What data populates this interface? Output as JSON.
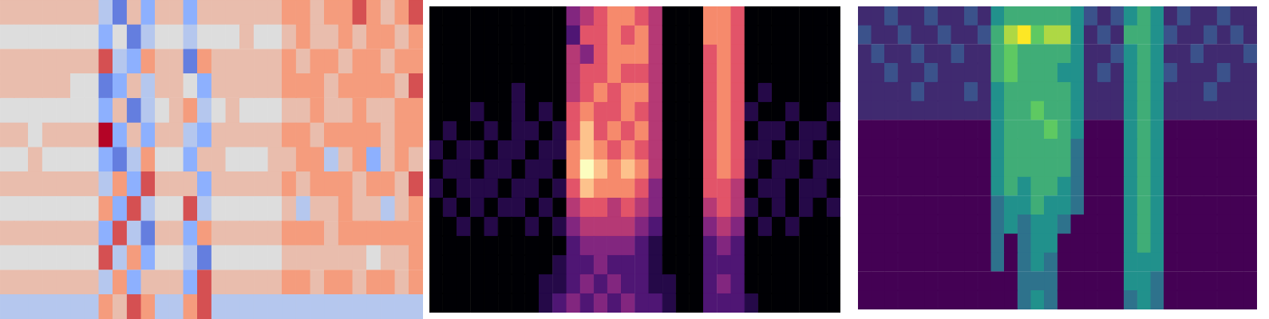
{
  "chart_data": [
    {
      "type": "heatmap",
      "color": "coolwarm",
      "zlim": [
        0,
        8
      ],
      "tick_labels": false,
      "cells": [
        [
          5,
          5,
          5,
          5,
          5,
          5,
          5,
          3,
          1,
          5,
          2,
          5,
          5,
          2,
          5,
          5,
          5,
          5,
          5,
          5,
          6,
          6,
          5,
          6,
          6,
          7,
          6,
          5,
          6,
          7
        ],
        [
          4,
          4,
          4,
          4,
          4,
          4,
          4,
          2,
          4,
          1,
          3,
          4,
          4,
          3,
          4,
          4,
          4,
          5,
          4,
          4,
          5,
          6,
          5,
          5,
          6,
          5,
          6,
          6,
          5,
          6
        ],
        [
          5,
          5,
          5,
          5,
          5,
          5,
          5,
          7,
          3,
          2,
          6,
          5,
          5,
          1,
          6,
          5,
          5,
          5,
          5,
          5,
          6,
          5,
          6,
          6,
          5,
          6,
          6,
          5,
          6,
          6
        ],
        [
          5,
          5,
          5,
          5,
          5,
          4,
          4,
          1,
          2,
          5,
          3,
          5,
          5,
          4,
          2,
          5,
          5,
          5,
          5,
          5,
          6,
          6,
          6,
          5,
          6,
          6,
          6,
          6,
          5,
          7
        ],
        [
          4,
          4,
          4,
          4,
          4,
          4,
          4,
          2,
          5,
          1,
          3,
          4,
          5,
          6,
          3,
          4,
          5,
          4,
          4,
          4,
          5,
          5,
          6,
          5,
          5,
          6,
          5,
          5,
          6,
          6
        ],
        [
          5,
          5,
          4,
          5,
          5,
          5,
          5,
          8,
          2,
          5,
          2,
          5,
          5,
          3,
          2,
          5,
          5,
          5,
          5,
          5,
          6,
          6,
          5,
          6,
          6,
          6,
          6,
          5,
          6,
          6
        ],
        [
          4,
          4,
          5,
          4,
          4,
          4,
          4,
          2,
          1,
          3,
          6,
          4,
          4,
          2,
          5,
          5,
          4,
          4,
          4,
          5,
          5,
          6,
          6,
          3,
          5,
          6,
          2,
          5,
          6,
          5
        ],
        [
          5,
          5,
          5,
          5,
          5,
          5,
          5,
          3,
          6,
          2,
          7,
          5,
          5,
          5,
          2,
          5,
          5,
          5,
          5,
          5,
          6,
          5,
          6,
          6,
          6,
          5,
          6,
          6,
          5,
          7
        ],
        [
          4,
          4,
          4,
          4,
          4,
          4,
          4,
          6,
          2,
          7,
          3,
          4,
          4,
          7,
          3,
          4,
          4,
          4,
          4,
          4,
          5,
          3,
          5,
          5,
          6,
          5,
          5,
          3,
          5,
          6
        ],
        [
          5,
          5,
          5,
          5,
          5,
          5,
          5,
          2,
          7,
          3,
          1,
          5,
          5,
          2,
          6,
          5,
          5,
          5,
          5,
          5,
          6,
          6,
          6,
          5,
          6,
          6,
          6,
          6,
          6,
          6
        ],
        [
          4,
          4,
          4,
          4,
          4,
          4,
          4,
          7,
          3,
          6,
          2,
          4,
          4,
          3,
          1,
          4,
          4,
          4,
          4,
          4,
          5,
          5,
          5,
          5,
          5,
          5,
          4,
          5,
          5,
          6
        ],
        [
          5,
          5,
          5,
          5,
          5,
          5,
          5,
          3,
          6,
          2,
          5,
          5,
          5,
          2,
          7,
          5,
          5,
          5,
          5,
          5,
          6,
          6,
          5,
          6,
          6,
          5,
          6,
          6,
          5,
          6
        ],
        [
          3,
          3,
          3,
          3,
          3,
          3,
          3,
          6,
          5,
          7,
          6,
          3,
          3,
          6,
          7,
          3,
          3,
          3,
          3,
          3,
          3,
          3,
          3,
          3,
          3,
          3,
          3,
          3,
          3,
          3
        ]
      ]
    },
    {
      "type": "heatmap",
      "color": "magma",
      "zlim": [
        0,
        8
      ],
      "tick_labels": false,
      "cells": [
        [
          0,
          0,
          0,
          0,
          0,
          0,
          0,
          0,
          0,
          0,
          3,
          4,
          5,
          6,
          6,
          5,
          4,
          0,
          0,
          0,
          6,
          6,
          5,
          0,
          0,
          0,
          0,
          0,
          0,
          0
        ],
        [
          0,
          0,
          0,
          0,
          0,
          0,
          0,
          0,
          0,
          0,
          2,
          5,
          5,
          6,
          5,
          6,
          4,
          0,
          0,
          0,
          6,
          6,
          5,
          0,
          0,
          0,
          0,
          0,
          0,
          0
        ],
        [
          0,
          0,
          0,
          0,
          0,
          0,
          0,
          0,
          0,
          0,
          4,
          3,
          5,
          6,
          6,
          6,
          4,
          0,
          0,
          0,
          5,
          6,
          5,
          0,
          0,
          0,
          0,
          0,
          0,
          0
        ],
        [
          0,
          0,
          0,
          0,
          0,
          0,
          0,
          0,
          0,
          0,
          4,
          5,
          5,
          6,
          5,
          5,
          4,
          0,
          0,
          0,
          5,
          6,
          5,
          0,
          0,
          0,
          0,
          0,
          0,
          0
        ],
        [
          0,
          0,
          0,
          0,
          0,
          0,
          1,
          0,
          0,
          0,
          4,
          5,
          6,
          5,
          6,
          6,
          4,
          0,
          0,
          0,
          5,
          6,
          5,
          0,
          1,
          0,
          0,
          0,
          0,
          0
        ],
        [
          0,
          0,
          0,
          1,
          0,
          0,
          1,
          0,
          1,
          0,
          5,
          6,
          5,
          5,
          6,
          5,
          4,
          0,
          0,
          0,
          5,
          6,
          5,
          1,
          0,
          0,
          1,
          0,
          0,
          1
        ],
        [
          0,
          1,
          0,
          0,
          1,
          0,
          1,
          1,
          0,
          1,
          5,
          7,
          5,
          6,
          5,
          6,
          4,
          0,
          0,
          0,
          5,
          6,
          5,
          0,
          1,
          1,
          0,
          1,
          1,
          0
        ],
        [
          1,
          0,
          1,
          1,
          0,
          1,
          1,
          0,
          1,
          1,
          6,
          7,
          6,
          5,
          6,
          5,
          4,
          0,
          0,
          0,
          5,
          6,
          5,
          1,
          1,
          0,
          1,
          1,
          0,
          1
        ],
        [
          0,
          1,
          1,
          0,
          1,
          1,
          0,
          1,
          1,
          0,
          6,
          8,
          7,
          6,
          7,
          6,
          4,
          0,
          0,
          0,
          5,
          6,
          5,
          1,
          0,
          1,
          1,
          0,
          1,
          1
        ],
        [
          1,
          0,
          1,
          1,
          1,
          0,
          1,
          1,
          0,
          1,
          5,
          7,
          6,
          6,
          6,
          5,
          3,
          0,
          0,
          0,
          5,
          5,
          4,
          0,
          1,
          1,
          0,
          1,
          1,
          0
        ],
        [
          0,
          1,
          0,
          1,
          0,
          1,
          1,
          0,
          1,
          0,
          4,
          5,
          5,
          4,
          5,
          4,
          3,
          0,
          0,
          0,
          4,
          5,
          4,
          1,
          0,
          1,
          0,
          1,
          0,
          1
        ],
        [
          0,
          0,
          1,
          0,
          1,
          0,
          0,
          1,
          0,
          1,
          3,
          4,
          4,
          4,
          4,
          3,
          2,
          0,
          0,
          0,
          3,
          4,
          3,
          0,
          1,
          0,
          1,
          0,
          0,
          0
        ],
        [
          0,
          0,
          0,
          0,
          0,
          0,
          0,
          0,
          0,
          0,
          2,
          3,
          3,
          3,
          3,
          2,
          1,
          0,
          0,
          0,
          2,
          3,
          2,
          0,
          0,
          0,
          0,
          0,
          0,
          0
        ],
        [
          0,
          0,
          0,
          0,
          0,
          0,
          0,
          0,
          0,
          1,
          2,
          2,
          3,
          2,
          2,
          2,
          1,
          0,
          0,
          0,
          2,
          2,
          2,
          0,
          0,
          0,
          0,
          0,
          0,
          0
        ],
        [
          0,
          0,
          0,
          0,
          0,
          0,
          0,
          0,
          1,
          1,
          2,
          3,
          2,
          3,
          2,
          2,
          1,
          1,
          0,
          0,
          2,
          3,
          2,
          0,
          0,
          0,
          0,
          0,
          0,
          0
        ],
        [
          0,
          0,
          0,
          0,
          0,
          0,
          0,
          0,
          1,
          2,
          3,
          2,
          3,
          2,
          3,
          2,
          2,
          1,
          0,
          0,
          2,
          2,
          2,
          1,
          0,
          0,
          0,
          0,
          0,
          0
        ]
      ]
    },
    {
      "type": "heatmap",
      "color": "viridis",
      "zlim": [
        0,
        8
      ],
      "tick_labels": false,
      "cells": [
        [
          1,
          1,
          2,
          1,
          1,
          2,
          1,
          1,
          2,
          1,
          4,
          5,
          5,
          5,
          5,
          5,
          4,
          2,
          1,
          2,
          4,
          5,
          4,
          1,
          2,
          1,
          1,
          2,
          1,
          1
        ],
        [
          2,
          1,
          1,
          2,
          1,
          1,
          2,
          1,
          1,
          2,
          5,
          7,
          8,
          6,
          7,
          7,
          4,
          1,
          2,
          1,
          5,
          5,
          4,
          2,
          1,
          1,
          2,
          1,
          2,
          1
        ],
        [
          1,
          2,
          1,
          1,
          2,
          1,
          1,
          2,
          1,
          1,
          5,
          6,
          5,
          5,
          5,
          5,
          4,
          1,
          1,
          2,
          4,
          5,
          4,
          1,
          1,
          2,
          1,
          1,
          1,
          2
        ],
        [
          1,
          1,
          2,
          1,
          1,
          2,
          1,
          1,
          1,
          1,
          5,
          6,
          5,
          5,
          5,
          4,
          4,
          1,
          2,
          1,
          4,
          5,
          4,
          2,
          1,
          1,
          1,
          2,
          1,
          1
        ],
        [
          1,
          1,
          1,
          1,
          2,
          1,
          1,
          1,
          2,
          1,
          4,
          5,
          5,
          5,
          5,
          5,
          4,
          1,
          1,
          1,
          4,
          5,
          4,
          1,
          1,
          1,
          2,
          1,
          1,
          1
        ],
        [
          1,
          1,
          1,
          1,
          1,
          1,
          1,
          1,
          1,
          1,
          4,
          5,
          5,
          6,
          5,
          5,
          4,
          1,
          1,
          1,
          4,
          5,
          4,
          1,
          1,
          1,
          1,
          1,
          1,
          1
        ],
        [
          0,
          0,
          0,
          0,
          0,
          0,
          0,
          0,
          0,
          0,
          4,
          5,
          5,
          5,
          6,
          5,
          4,
          0,
          0,
          0,
          4,
          5,
          4,
          0,
          0,
          0,
          0,
          0,
          0,
          0
        ],
        [
          0,
          0,
          0,
          0,
          0,
          0,
          0,
          0,
          0,
          0,
          4,
          5,
          5,
          5,
          5,
          5,
          3,
          0,
          0,
          0,
          4,
          5,
          4,
          0,
          0,
          0,
          0,
          0,
          0,
          0
        ],
        [
          0,
          0,
          0,
          0,
          0,
          0,
          0,
          0,
          0,
          0,
          4,
          5,
          5,
          5,
          5,
          5,
          3,
          0,
          0,
          0,
          4,
          5,
          4,
          0,
          0,
          0,
          0,
          0,
          0,
          0
        ],
        [
          0,
          0,
          0,
          0,
          0,
          0,
          0,
          0,
          0,
          0,
          4,
          5,
          4,
          5,
          5,
          4,
          3,
          0,
          0,
          0,
          4,
          5,
          4,
          0,
          0,
          0,
          0,
          0,
          0,
          0
        ],
        [
          0,
          0,
          0,
          0,
          0,
          0,
          0,
          0,
          0,
          0,
          3,
          4,
          4,
          5,
          4,
          4,
          3,
          0,
          0,
          0,
          4,
          5,
          4,
          0,
          0,
          0,
          0,
          0,
          0,
          0
        ],
        [
          0,
          0,
          0,
          0,
          0,
          0,
          0,
          0,
          0,
          0,
          3,
          4,
          3,
          4,
          4,
          3,
          0,
          0,
          0,
          0,
          4,
          5,
          4,
          0,
          0,
          0,
          0,
          0,
          0,
          0
        ],
        [
          0,
          0,
          0,
          0,
          0,
          0,
          0,
          0,
          0,
          0,
          3,
          0,
          3,
          4,
          4,
          0,
          0,
          0,
          0,
          0,
          4,
          5,
          4,
          0,
          0,
          0,
          0,
          0,
          0,
          0
        ],
        [
          0,
          0,
          0,
          0,
          0,
          0,
          0,
          0,
          0,
          0,
          3,
          0,
          3,
          4,
          3,
          0,
          0,
          0,
          0,
          0,
          4,
          4,
          4,
          0,
          0,
          0,
          0,
          0,
          0,
          0
        ],
        [
          0,
          0,
          0,
          0,
          0,
          0,
          0,
          0,
          0,
          0,
          0,
          0,
          3,
          3,
          3,
          0,
          0,
          0,
          0,
          0,
          4,
          4,
          3,
          0,
          0,
          0,
          0,
          0,
          0,
          0
        ],
        [
          0,
          0,
          0,
          0,
          0,
          0,
          0,
          0,
          0,
          0,
          0,
          0,
          3,
          4,
          3,
          0,
          0,
          0,
          0,
          0,
          3,
          4,
          3,
          0,
          0,
          0,
          0,
          0,
          0,
          0
        ]
      ]
    }
  ]
}
